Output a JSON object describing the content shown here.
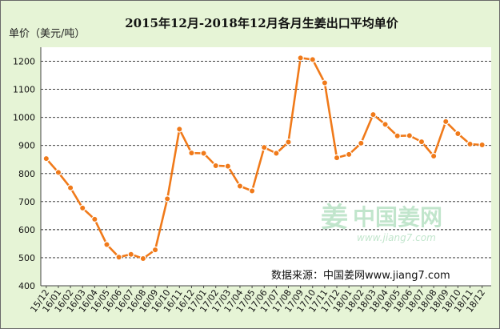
{
  "chart_data": {
    "type": "line",
    "title": "2015年12月-2018年12月各月生姜出口平均单价",
    "ylabel": "单价（美元/吨）",
    "xlabel": "",
    "ylim": [
      400,
      1250
    ],
    "yticks": [
      400,
      500,
      600,
      700,
      800,
      900,
      1000,
      1100,
      1200
    ],
    "grid": true,
    "grid_style": "dashed horizontal",
    "line_color": "#F07A1A",
    "categories": [
      "15/12",
      "16/01",
      "16/02",
      "16/03",
      "16/04",
      "16/05",
      "16/06",
      "16/07",
      "16/08",
      "16/09",
      "16/10",
      "16/11",
      "16/12",
      "17/01",
      "17/02",
      "17/03",
      "17/04",
      "17/05",
      "17/06",
      "17/07",
      "17/08",
      "17/09",
      "17/10",
      "17/11",
      "17/12",
      "18/01",
      "18/02",
      "18/03",
      "18/04",
      "18/05",
      "18/06",
      "18/07",
      "18/08",
      "18/09",
      "18/10",
      "18/11",
      "18/12"
    ],
    "values": [
      853,
      804,
      749,
      677,
      637,
      547,
      502,
      512,
      497,
      528,
      710,
      958,
      873,
      872,
      828,
      826,
      755,
      738,
      893,
      872,
      912,
      1212,
      1206,
      1123,
      856,
      868,
      908,
      1010,
      975,
      934,
      935,
      913,
      862,
      985,
      942,
      905,
      902
    ]
  },
  "source_text": "数据来源：中国姜网www.jiang7.com",
  "watermark": {
    "name": "中国姜网",
    "url": "www.jiang7.com"
  }
}
